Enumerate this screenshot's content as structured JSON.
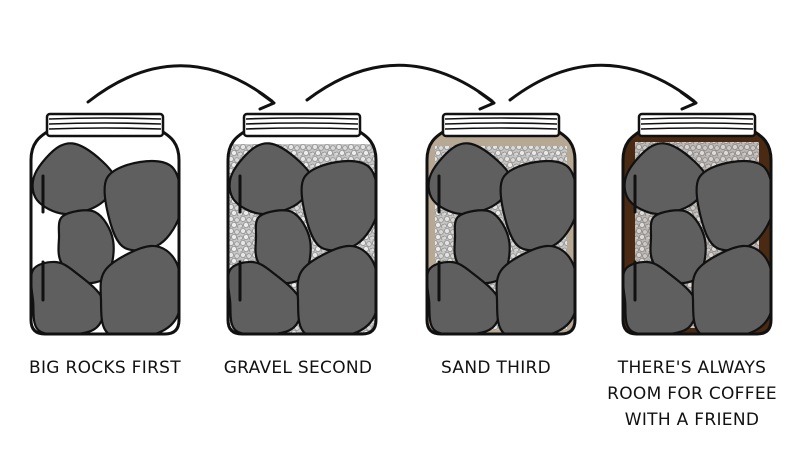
{
  "steps": [
    {
      "caption": [
        "BIG ROCKS FIRST"
      ],
      "fill": "none"
    },
    {
      "caption": [
        "GRAVEL SECOND"
      ],
      "fill": "gravel"
    },
    {
      "caption": [
        "SAND THIRD"
      ],
      "fill": "sand"
    },
    {
      "caption": [
        "THERE'S ALWAYS",
        "ROOM FOR COFFEE",
        "WITH A FRIEND"
      ],
      "fill": "coffee"
    }
  ],
  "colors": {
    "outline": "#111111",
    "rock": "#5f5f5f",
    "gravel": "#c6c6c6",
    "gravel_shadow": "#8f8f8f",
    "sand": "#b7a894",
    "coffee": "#4a2a12",
    "glass": "#ffffff"
  }
}
